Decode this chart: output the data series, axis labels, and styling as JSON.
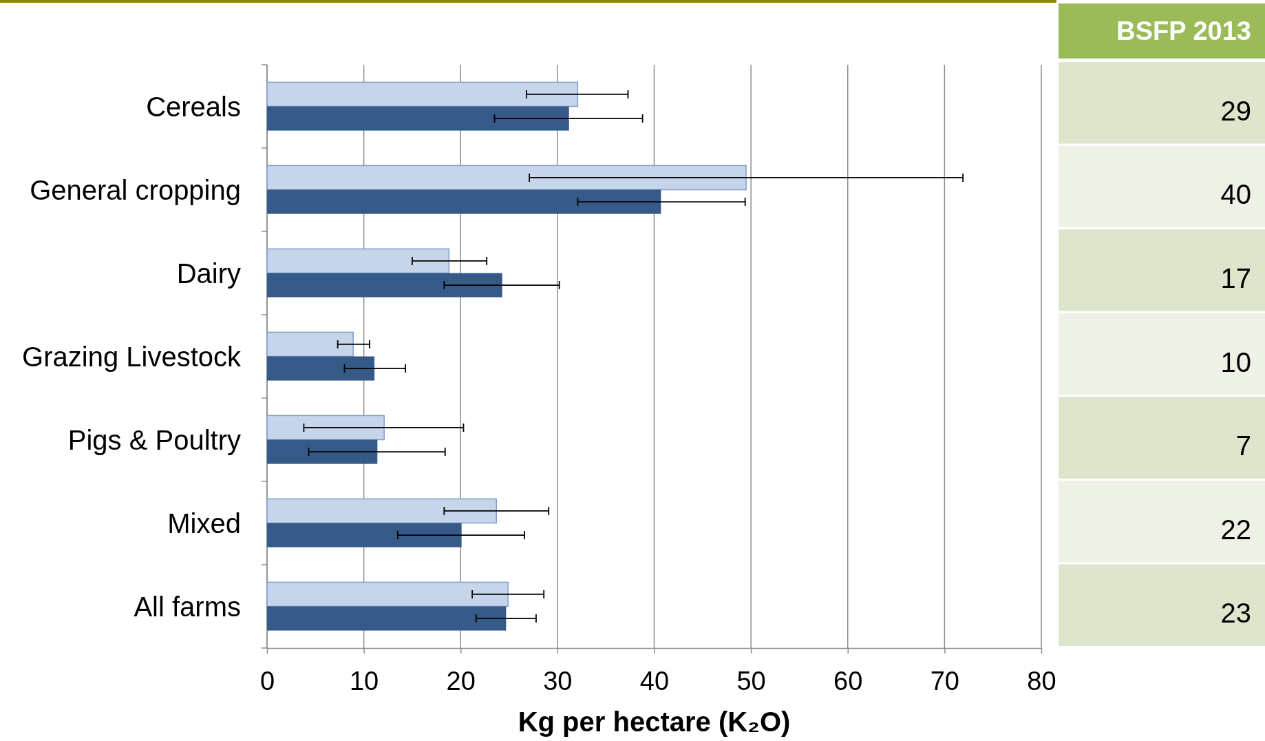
{
  "chart_data": [
    {
      "type": "bar",
      "orientation": "horizontal",
      "categories": [
        "Cereals",
        "General cropping",
        "Dairy",
        "Grazing Livestock",
        "Pigs & Poultry",
        "Mixed",
        "All farms"
      ],
      "series": [
        {
          "color": "#c6d5ea",
          "values": [
            32.1,
            49.5,
            18.8,
            8.9,
            12.1,
            23.7,
            24.9
          ],
          "errors": [
            [
              26.8,
              37.3
            ],
            [
              27.1,
              71.9
            ],
            [
              15.0,
              22.7
            ],
            [
              7.3,
              10.6
            ],
            [
              3.8,
              20.3
            ],
            [
              18.3,
              29.1
            ],
            [
              21.2,
              28.6
            ]
          ]
        },
        {
          "color": "#355a88",
          "values": [
            31.2,
            40.7,
            24.3,
            11.1,
            11.4,
            20.1,
            24.7
          ],
          "errors": [
            [
              23.5,
              38.8
            ],
            [
              32.1,
              49.4
            ],
            [
              18.3,
              30.2
            ],
            [
              8.0,
              14.3
            ],
            [
              4.3,
              18.4
            ],
            [
              13.5,
              26.6
            ],
            [
              21.6,
              27.8
            ]
          ]
        }
      ],
      "xlabel": "Kg per hectare (K₂O)",
      "xlim": [
        0,
        80
      ],
      "xticks": [
        0,
        10,
        20,
        30,
        40,
        50,
        60,
        70,
        80
      ],
      "grid": "x"
    },
    {
      "type": "other",
      "title": "BSFP 2013",
      "annotations": [
        "29",
        "40",
        "17",
        "10",
        "7",
        "22",
        "23"
      ]
    }
  ]
}
